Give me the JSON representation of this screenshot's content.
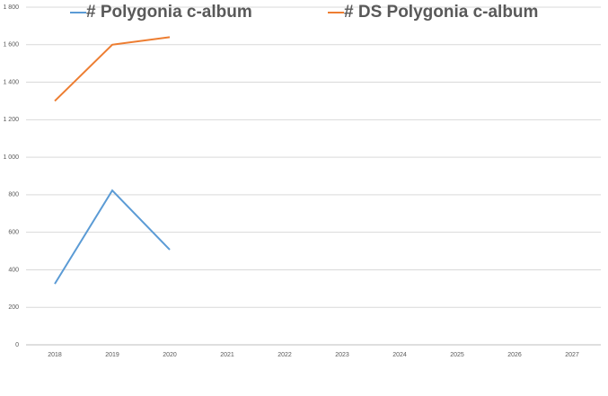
{
  "chart_data": {
    "type": "line",
    "categories": [
      "2018",
      "2019",
      "2020",
      "2021",
      "2022",
      "2023",
      "2024",
      "2025",
      "2026",
      "2027"
    ],
    "series": [
      {
        "name": "# Polygonia c-album",
        "color": "#5b9bd5",
        "values": [
          325,
          823,
          507,
          null,
          null,
          null,
          null,
          null,
          null,
          null
        ]
      },
      {
        "name": "# DS Polygonia c-album",
        "color": "#ed7d31",
        "values": [
          1300,
          1600,
          1640,
          null,
          null,
          null,
          null,
          null,
          null,
          null
        ]
      }
    ],
    "ylim": [
      0,
      1800
    ],
    "yticks": [
      0,
      200,
      400,
      600,
      800,
      {
        "value": 1000,
        "label": "1 000"
      },
      {
        "value": 1200,
        "label": "1 200"
      },
      {
        "value": 1400,
        "label": "1 400"
      },
      {
        "value": 1600,
        "label": "1 600"
      },
      {
        "value": 1800,
        "label": "1 800"
      }
    ],
    "grid": true,
    "legend": "top"
  }
}
